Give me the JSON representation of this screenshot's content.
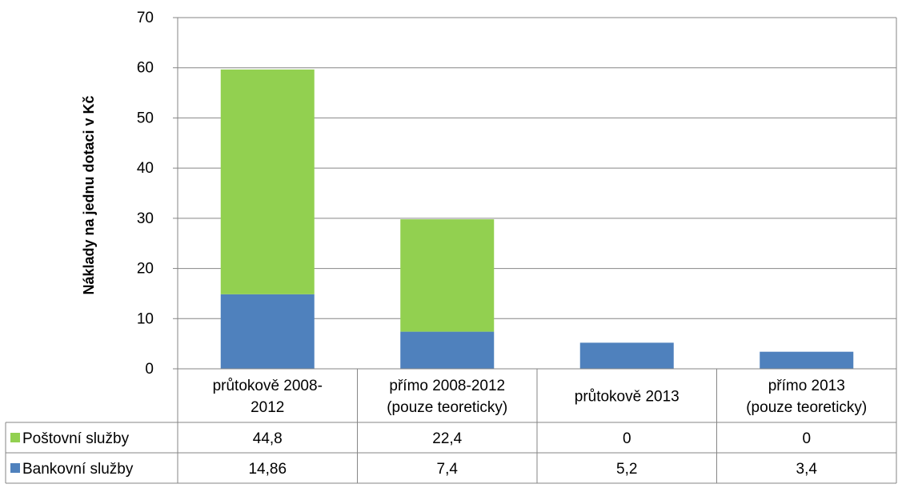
{
  "chart_data": {
    "type": "bar",
    "stacked": true,
    "title": "",
    "ylabel": "Náklady na jednu dotaci v Kč",
    "ylim": [
      0,
      70
    ],
    "yticks": [
      0,
      10,
      20,
      30,
      40,
      50,
      60,
      70
    ],
    "grid": true,
    "legend_position": "data-table",
    "categories": [
      [
        "průtokově  2008-",
        "2012"
      ],
      [
        "přímo 2008-2012",
        "(pouze teoreticky)"
      ],
      [
        "průtokově 2013"
      ],
      [
        "přímo 2013",
        "(pouze teoreticky)"
      ]
    ],
    "series": [
      {
        "name": "Bankovní služby",
        "color": "#4f81bd",
        "values": [
          14.86,
          7.4,
          5.2,
          3.4
        ],
        "labels": [
          "14,86",
          "7,4",
          "5,2",
          "3,4"
        ]
      },
      {
        "name": "Poštovní služby",
        "color": "#92d050",
        "values": [
          44.8,
          22.4,
          0,
          0
        ],
        "labels": [
          "44,8",
          "22,4",
          "0",
          "0"
        ]
      }
    ],
    "table_row_order": [
      1,
      0
    ]
  }
}
